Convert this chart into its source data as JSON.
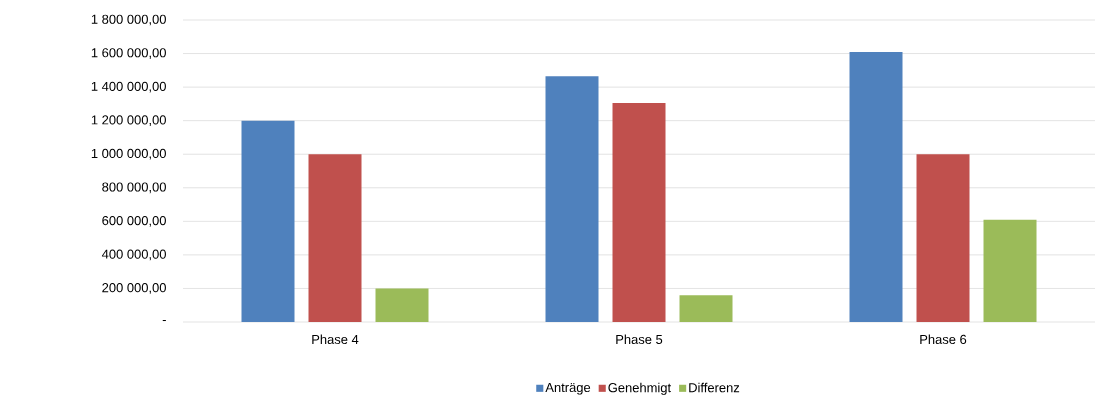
{
  "chart_data": {
    "type": "bar",
    "categories": [
      "Phase 4",
      "Phase 5",
      "Phase 6"
    ],
    "series": [
      {
        "name": "Anträge",
        "color": "#4f81bd",
        "values": [
          1200000,
          1465000,
          1610000
        ]
      },
      {
        "name": "Genehmigt",
        "color": "#c0504d",
        "values": [
          1000000,
          1305000,
          1000000
        ]
      },
      {
        "name": "Differenz",
        "color": "#9bbb59",
        "values": [
          200000,
          160000,
          610000
        ]
      }
    ],
    "ylim": [
      0,
      1800000
    ],
    "yticks": [
      {
        "value": 0,
        "label": "-"
      },
      {
        "value": 200000,
        "label": "200 000,00"
      },
      {
        "value": 400000,
        "label": "400 000,00"
      },
      {
        "value": 600000,
        "label": "600 000,00"
      },
      {
        "value": 800000,
        "label": "800 000,00"
      },
      {
        "value": 1000000,
        "label": "1 000 000,00"
      },
      {
        "value": 1200000,
        "label": "1 200 000,00"
      },
      {
        "value": 1400000,
        "label": "1 400 000,00"
      },
      {
        "value": 1600000,
        "label": "1 600 000,00"
      },
      {
        "value": 1800000,
        "label": "1 800 000,00"
      }
    ],
    "grid": "y",
    "legend": "bottom"
  }
}
